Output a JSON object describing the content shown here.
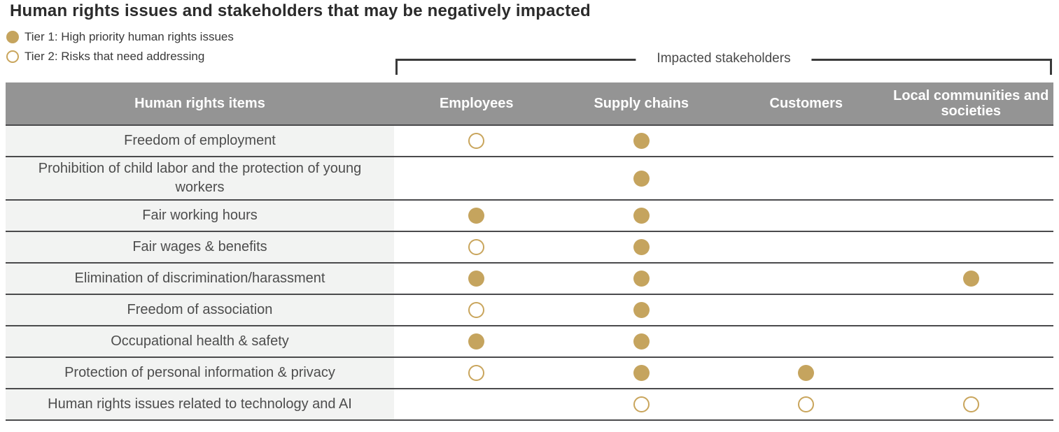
{
  "title": "Human rights issues and stakeholders that may be negatively impacted",
  "legend": {
    "tier1_label": "Tier 1: High priority human rights issues",
    "tier2_label": "Tier 2: Risks that need addressing"
  },
  "bracket_label": "Impacted stakeholders",
  "colors": {
    "accent_gold": "#c5a45e",
    "header_bg": "#949494",
    "label_column_bg": "#f2f3f2",
    "row_separator": "#4a4a4c"
  },
  "chart_data": {
    "type": "table",
    "title": "Human rights issues and stakeholders that may be negatively impacted",
    "legend": {
      "tier1": "Tier 1: High priority human rights issues (filled circle)",
      "tier2": "Tier 2: Risks that need addressing (open circle)"
    },
    "column_group_label": "Impacted stakeholders",
    "columns": [
      "Human rights items",
      "Employees",
      "Supply chains",
      "Customers",
      "Local communities and societies"
    ],
    "rows": [
      {
        "item": "Freedom of employment",
        "marks": {
          "employees": "tier2",
          "supply_chains": "tier1",
          "customers": null,
          "local_communities": null
        }
      },
      {
        "item": "Prohibition of child labor and the protection of young workers",
        "marks": {
          "employees": null,
          "supply_chains": "tier1",
          "customers": null,
          "local_communities": null
        }
      },
      {
        "item": "Fair working hours",
        "marks": {
          "employees": "tier1",
          "supply_chains": "tier1",
          "customers": null,
          "local_communities": null
        }
      },
      {
        "item": "Fair wages & benefits",
        "marks": {
          "employees": "tier2",
          "supply_chains": "tier1",
          "customers": null,
          "local_communities": null
        }
      },
      {
        "item": "Elimination of discrimination/harassment",
        "marks": {
          "employees": "tier1",
          "supply_chains": "tier1",
          "customers": null,
          "local_communities": "tier1"
        }
      },
      {
        "item": "Freedom of association",
        "marks": {
          "employees": "tier2",
          "supply_chains": "tier1",
          "customers": null,
          "local_communities": null
        }
      },
      {
        "item": "Occupational health & safety",
        "marks": {
          "employees": "tier1",
          "supply_chains": "tier1",
          "customers": null,
          "local_communities": null
        }
      },
      {
        "item": "Protection of personal information & privacy",
        "marks": {
          "employees": "tier2",
          "supply_chains": "tier1",
          "customers": "tier1",
          "local_communities": null
        }
      },
      {
        "item": "Human rights issues related to technology and AI",
        "marks": {
          "employees": null,
          "supply_chains": "tier2",
          "customers": "tier2",
          "local_communities": "tier2"
        }
      }
    ]
  }
}
